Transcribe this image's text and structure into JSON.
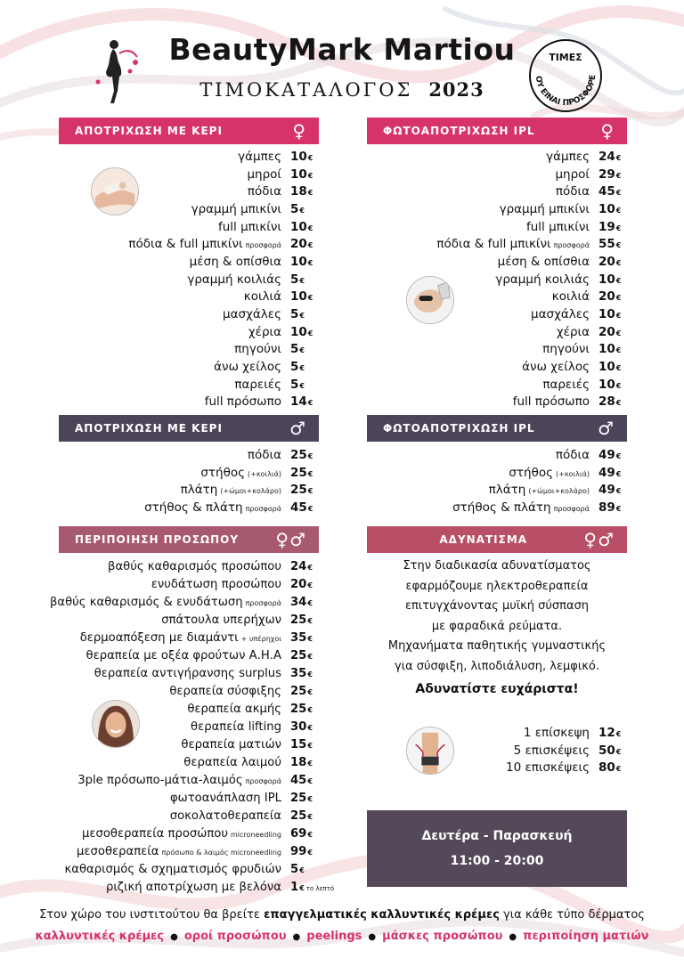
{
  "header": {
    "brand": "BeautyMark Martiou",
    "subtitle": "ΤΙΜΟΚΑΤΑΛΟΓΟΣ",
    "year": "2023",
    "stamp_lines": [
      "ΤΙΜΕΣ",
      "ΠΟΥ ΕΙΝΑΙ ΠΡΟΣΦΟΡΕΣ"
    ]
  },
  "currency": "€",
  "sections": {
    "wax_female": {
      "title": "ΑΠΟΤΡΙΧΩΣΗ ΜΕ ΚΕΡΙ",
      "gender": "♀",
      "items": [
        {
          "name": "γάμπες",
          "note": "",
          "price": "10"
        },
        {
          "name": "μηροί",
          "note": "",
          "price": "10"
        },
        {
          "name": "πόδια",
          "note": "",
          "price": "18"
        },
        {
          "name": "γραμμή μπικίνι",
          "note": "",
          "price": "5"
        },
        {
          "name": "full μπικίνι",
          "note": "",
          "price": "10"
        },
        {
          "name": "πόδια & full μπικίνι",
          "note": "προσφορά",
          "price": "20"
        },
        {
          "name": "μέση & οπίσθια",
          "note": "",
          "price": "10"
        },
        {
          "name": "γραμμή κοιλιάς",
          "note": "",
          "price": "5"
        },
        {
          "name": "κοιλιά",
          "note": "",
          "price": "10"
        },
        {
          "name": "μασχάλες",
          "note": "",
          "price": "5"
        },
        {
          "name": "χέρια",
          "note": "",
          "price": "10"
        },
        {
          "name": "πηγούνι",
          "note": "",
          "price": "5"
        },
        {
          "name": "άνω χείλος",
          "note": "",
          "price": "5"
        },
        {
          "name": "παρειές",
          "note": "",
          "price": "5"
        },
        {
          "name": "full πρόσωπο",
          "note": "",
          "price": "14"
        }
      ]
    },
    "ipl_female": {
      "title": "ΦΩΤΟΑΠΟΤΡΙΧΩΣΗ IPL",
      "gender": "♀",
      "items": [
        {
          "name": "γάμπες",
          "note": "",
          "price": "24"
        },
        {
          "name": "μηροί",
          "note": "",
          "price": "29"
        },
        {
          "name": "πόδια",
          "note": "",
          "price": "45"
        },
        {
          "name": "γραμμή μπικίνι",
          "note": "",
          "price": "10"
        },
        {
          "name": "full μπικίνι",
          "note": "",
          "price": "19"
        },
        {
          "name": "πόδια & full μπικίνι",
          "note": "προσφορά",
          "price": "55"
        },
        {
          "name": "μέση & οπίσθια",
          "note": "",
          "price": "20"
        },
        {
          "name": "γραμμή κοιλιάς",
          "note": "",
          "price": "10"
        },
        {
          "name": "κοιλιά",
          "note": "",
          "price": "20"
        },
        {
          "name": "μασχάλες",
          "note": "",
          "price": "10"
        },
        {
          "name": "χέρια",
          "note": "",
          "price": "20"
        },
        {
          "name": "πηγούνι",
          "note": "",
          "price": "10"
        },
        {
          "name": "άνω χείλος",
          "note": "",
          "price": "10"
        },
        {
          "name": "παρειές",
          "note": "",
          "price": "10"
        },
        {
          "name": "full πρόσωπο",
          "note": "",
          "price": "28"
        }
      ]
    },
    "wax_male": {
      "title": "ΑΠΟΤΡΙΧΩΣΗ ΜΕ ΚΕΡΙ",
      "gender": "♂",
      "items": [
        {
          "name": "πόδια",
          "note": "",
          "price": "25"
        },
        {
          "name": "στήθος",
          "note": "(+κοιλιά)",
          "price": "25"
        },
        {
          "name": "πλάτη",
          "note": "(+ώμοι+κολάρο)",
          "price": "25"
        },
        {
          "name": "στήθος & πλάτη",
          "note": "προσφορά",
          "price": "45"
        }
      ]
    },
    "ipl_male": {
      "title": "ΦΩΤΟΑΠΟΤΡΙΧΩΣΗ IPL",
      "gender": "♂",
      "items": [
        {
          "name": "πόδια",
          "note": "",
          "price": "49"
        },
        {
          "name": "στήθος",
          "note": "(+κοιλιά)",
          "price": "49"
        },
        {
          "name": "πλάτη",
          "note": "(+ώμοι+κολάρο)",
          "price": "49"
        },
        {
          "name": "στήθος & πλάτη",
          "note": "προσφορά",
          "price": "89"
        }
      ]
    },
    "facial": {
      "title": "ΠΕΡΙΠΟΙΗΣΗ ΠΡΟΣΩΠΟΥ",
      "gender": "♀♂",
      "items": [
        {
          "name": "βαθύς καθαρισμός προσώπου",
          "note": "",
          "price": "24",
          "per": ""
        },
        {
          "name": "ενυδάτωση προσώπου",
          "note": "",
          "price": "20",
          "per": ""
        },
        {
          "name": "βαθύς καθαρισμός & ενυδάτωση",
          "note": "προσφορά",
          "price": "34",
          "per": ""
        },
        {
          "name": "σπάτουλα υπερήχων",
          "note": "",
          "price": "25",
          "per": ""
        },
        {
          "name": "δερμοαπόξεση με διαμάντι",
          "note": "+ υπέρηχοι",
          "price": "35",
          "per": ""
        },
        {
          "name": "θεραπεία με οξέα φρούτων Α.Η.Α",
          "note": "",
          "price": "25",
          "per": ""
        },
        {
          "name": "θεραπεία αντιγήρανσης surplus",
          "note": "",
          "price": "35",
          "per": ""
        },
        {
          "name": "θεραπεία σύσφιξης",
          "note": "",
          "price": "25",
          "per": ""
        },
        {
          "name": "θεραπεία ακμής",
          "note": "",
          "price": "25",
          "per": ""
        },
        {
          "name": "θεραπεία lifting",
          "note": "",
          "price": "30",
          "per": ""
        },
        {
          "name": "θεραπεία ματιών",
          "note": "",
          "price": "15",
          "per": ""
        },
        {
          "name": "θεραπεία λαιμού",
          "note": "",
          "price": "18",
          "per": ""
        },
        {
          "name": "3ple πρόσωπο-μάτια-λαιμός",
          "note": "προσφορά",
          "price": "45",
          "per": ""
        },
        {
          "name": "φωτοανάπλαση IPL",
          "note": "",
          "price": "25",
          "per": ""
        },
        {
          "name": "σοκολατοθεραπεία",
          "note": "",
          "price": "25",
          "per": ""
        },
        {
          "name": "μεσοθεραπεία προσώπου",
          "note": "microneedling",
          "price": "69",
          "per": ""
        },
        {
          "name": "μεσοθεραπεία",
          "note": "πρόσωπο & λαιμός microneedling",
          "price": "99",
          "per": ""
        },
        {
          "name": "καθαρισμός & σχηματισμός φρυδιών",
          "note": "",
          "price": "5",
          "per": ""
        },
        {
          "name": "ριζική αποτρίχωση με βελόνα",
          "note": "",
          "price": "1",
          "per": "το λεπτό"
        }
      ]
    },
    "slimming": {
      "title": "ΑΔΥΝΑΤΙΣΜΑ",
      "gender": "♀♂",
      "lines": [
        "Στην διαδικασία αδυνατίσματος",
        "εφαρμόζουμε ηλεκτροθεραπεία",
        "επιτυγχάνοντας μυϊκή σύσπαση",
        "με φαραδικά ρεύματα.",
        "Μηχανήματα παθητικής γυμναστικής",
        "για σύσφιξη, λιποδιάλυση, λεμφικό."
      ],
      "cta": "Αδυνατίστε ευχάριστα!",
      "items": [
        {
          "name": "1 επίσκεψη",
          "note": "",
          "price": "12"
        },
        {
          "name": "5 επισκέψεις",
          "note": "",
          "price": "50"
        },
        {
          "name": "10 επισκέψεις",
          "note": "",
          "price": "80"
        }
      ]
    }
  },
  "hours": {
    "days": "Δευτέρα - Παρασκευή",
    "time": "11:00 - 20:00"
  },
  "footer": {
    "line_start": "Στον χώρο του ινστιτούτου θα βρείτε ",
    "line_bold": "επαγγελματικές καλλυντικές κρέμες",
    "line_end": " για κάθε τύπο δέρματος",
    "products": [
      "καλλυντικές κρέμες",
      "οροί προσώπου",
      "peelings",
      "μάσκες προσώπου",
      "περιποίηση ματιών"
    ]
  },
  "colors": {
    "pink": "#d7336b",
    "dark": "#4d4459",
    "mauve": "#a7596d",
    "rose": "#b94f67",
    "hours_bg": "#554858"
  }
}
